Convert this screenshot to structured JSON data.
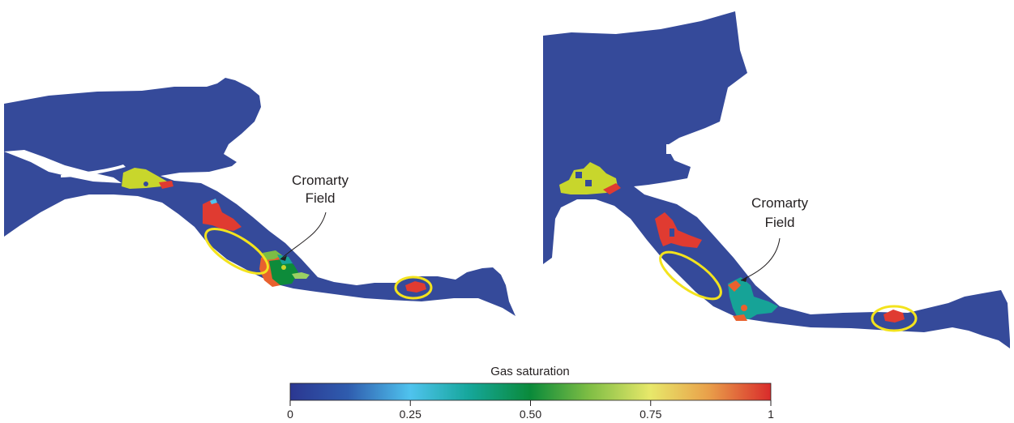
{
  "panels": [
    {
      "field_label_line1": "Cromarty",
      "field_label_line2": "Field"
    },
    {
      "field_label_line1": "Cromarty",
      "field_label_line2": "Field"
    }
  ],
  "colorbar": {
    "title": "Gas saturation",
    "min": 0,
    "max": 1,
    "ticks": [
      "0",
      "0.25",
      "0.50",
      "0.75",
      "1"
    ],
    "tick_values": [
      0,
      0.25,
      0.5,
      0.75,
      1
    ],
    "stops": [
      {
        "value": 0,
        "color": "#2b3791"
      },
      {
        "value": 0.12,
        "color": "#2f5cae"
      },
      {
        "value": 0.25,
        "color": "#4fc3ee"
      },
      {
        "value": 0.37,
        "color": "#16a79c"
      },
      {
        "value": 0.5,
        "color": "#0a8a3a"
      },
      {
        "value": 0.62,
        "color": "#7dbd44"
      },
      {
        "value": 0.75,
        "color": "#e8e86a"
      },
      {
        "value": 0.87,
        "color": "#e9a04a"
      },
      {
        "value": 1,
        "color": "#d92b2b"
      }
    ]
  },
  "colors": {
    "formation": "#354a9a",
    "saturated_red": "#e03b31",
    "saturated_orange": "#e8612e",
    "yellow_green": "#c8d62c",
    "teal": "#16a397",
    "green": "#0d8b3a",
    "highlight_ellipse": "#f3e31d"
  }
}
